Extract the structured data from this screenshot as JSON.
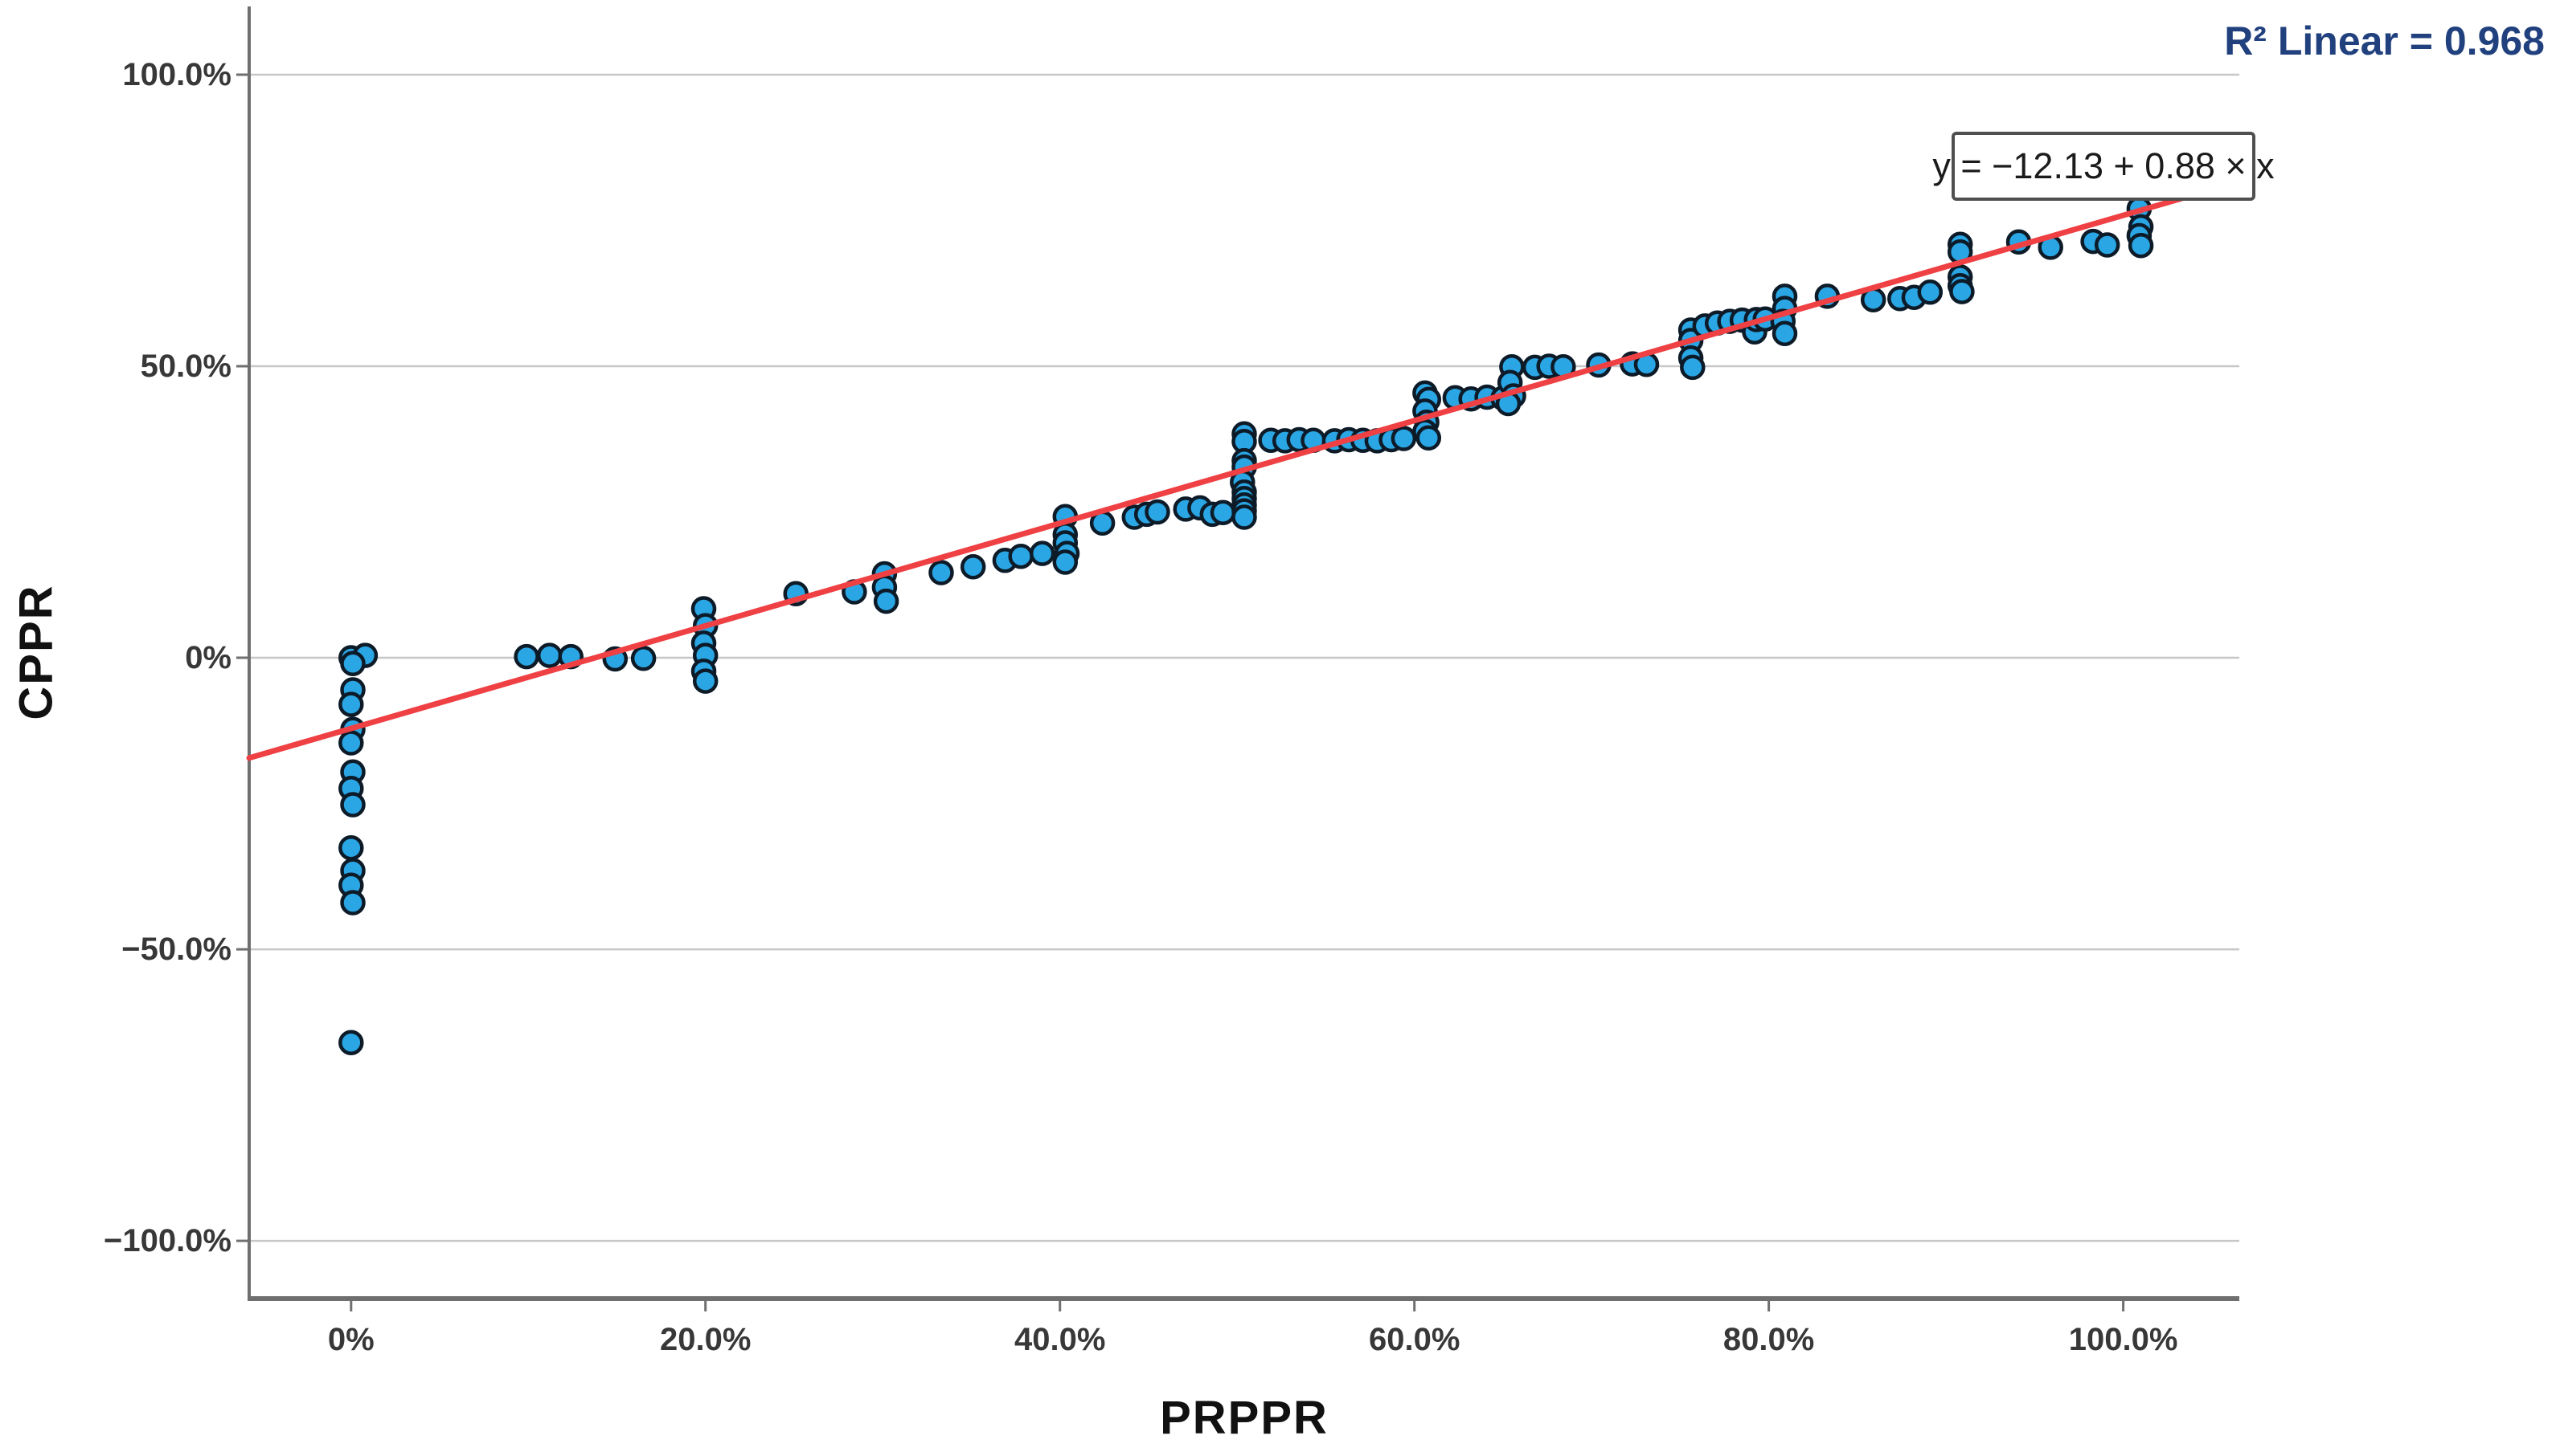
{
  "chart_data": {
    "type": "scatter",
    "title": "",
    "xlabel": "PRPPR",
    "ylabel": "CPPR",
    "r2_label": "R² Linear = 0.968",
    "r2_value": 0.968,
    "fit_line": {
      "equation_label": "y = −12.13 + 0.88 × x",
      "intercept": -12.13,
      "slope": 0.88
    },
    "x_ticks": {
      "labels": [
        "0%",
        "20.0%",
        "40.0%",
        "60.0%",
        "80.0%",
        "100.0%"
      ],
      "values": [
        0,
        20,
        40,
        60,
        80,
        100
      ]
    },
    "y_ticks": {
      "labels": [
        "100.0%",
        "50.0%",
        "0%",
        "−50.0%",
        "−100.0%"
      ],
      "values": [
        100,
        50,
        0,
        -50,
        -100
      ]
    },
    "xlim": [
      -5.75,
      106.55
    ],
    "ylim": [
      -109.9,
      111.7
    ],
    "grid": "horizontal-only",
    "legend": "none",
    "points": [
      [
        0,
        0
      ],
      [
        0.8,
        0.4
      ],
      [
        0.1,
        -1
      ],
      [
        0.1,
        -5.5
      ],
      [
        0,
        -8
      ],
      [
        0.1,
        -12.3
      ],
      [
        0,
        -14.6
      ],
      [
        0.1,
        -19.6
      ],
      [
        0,
        -22.4
      ],
      [
        0.1,
        -25.2
      ],
      [
        0,
        -32.6
      ],
      [
        0.1,
        -36.5
      ],
      [
        0,
        -39
      ],
      [
        0.1,
        -42
      ],
      [
        0,
        -66
      ],
      [
        9.9,
        0.2
      ],
      [
        11.2,
        0.4
      ],
      [
        12.4,
        0.2
      ],
      [
        14.9,
        -0.2
      ],
      [
        16.5,
        -0.1
      ],
      [
        19.9,
        8.4
      ],
      [
        20,
        5.5
      ],
      [
        19.9,
        2.5
      ],
      [
        20,
        0.4
      ],
      [
        19.9,
        -2.3
      ],
      [
        20,
        -4
      ],
      [
        25.1,
        11
      ],
      [
        28.4,
        11.3
      ],
      [
        30.1,
        14.4
      ],
      [
        30.1,
        12.1
      ],
      [
        30.2,
        9.7
      ],
      [
        33.3,
        14.6
      ],
      [
        35.1,
        15.6
      ],
      [
        36.9,
        16.7
      ],
      [
        37.8,
        17.4
      ],
      [
        39,
        17.9
      ],
      [
        40.3,
        24.2
      ],
      [
        40.3,
        21.1
      ],
      [
        40.3,
        19.7
      ],
      [
        40.4,
        17.9
      ],
      [
        40.3,
        16.4
      ],
      [
        42.4,
        23.1
      ],
      [
        44.2,
        24.1
      ],
      [
        44.9,
        24.6
      ],
      [
        45.5,
        25
      ],
      [
        47.1,
        25.5
      ],
      [
        47.9,
        25.7
      ],
      [
        48.6,
        24.6
      ],
      [
        49.2,
        24.9
      ],
      [
        50.4,
        38.4
      ],
      [
        50.4,
        37.1
      ],
      [
        50.4,
        33.8
      ],
      [
        50.4,
        32.7
      ],
      [
        50.3,
        30.1
      ],
      [
        50.4,
        28.4
      ],
      [
        50.4,
        27.3
      ],
      [
        50.4,
        26.2
      ],
      [
        50.4,
        25.2
      ],
      [
        50.4,
        24.1
      ],
      [
        51.9,
        37.3
      ],
      [
        52.7,
        37.2
      ],
      [
        53.5,
        37.4
      ],
      [
        54.3,
        37.3
      ],
      [
        55.5,
        37.2
      ],
      [
        56.3,
        37.4
      ],
      [
        57.1,
        37.3
      ],
      [
        57.9,
        37.2
      ],
      [
        58.7,
        37.4
      ],
      [
        59.4,
        37.6
      ],
      [
        60.6,
        45.4
      ],
      [
        60.8,
        44.3
      ],
      [
        60.6,
        42.3
      ],
      [
        60.7,
        40.4
      ],
      [
        60.6,
        38.8
      ],
      [
        60.8,
        37.7
      ],
      [
        62.3,
        44.6
      ],
      [
        63.2,
        44.4
      ],
      [
        64.1,
        44.7
      ],
      [
        65,
        44.5
      ],
      [
        65.5,
        49.9
      ],
      [
        65.4,
        47.2
      ],
      [
        65.6,
        44.9
      ],
      [
        65.3,
        43.6
      ],
      [
        66.8,
        49.8
      ],
      [
        67.6,
        50
      ],
      [
        68.4,
        49.9
      ],
      [
        70.4,
        50.2
      ],
      [
        72.3,
        50.4
      ],
      [
        73.1,
        50.3
      ],
      [
        75.6,
        56.2
      ],
      [
        75.6,
        54.4
      ],
      [
        75.6,
        51.4
      ],
      [
        75.7,
        49.8
      ],
      [
        76.4,
        56.9
      ],
      [
        77.1,
        57.4
      ],
      [
        77.8,
        57.7
      ],
      [
        78.5,
        57.9
      ],
      [
        79.2,
        55.9
      ],
      [
        79.3,
        58
      ],
      [
        79.8,
        58.1
      ],
      [
        80.9,
        62
      ],
      [
        80.9,
        59.9
      ],
      [
        80.8,
        57.7
      ],
      [
        80.9,
        55.6
      ],
      [
        83.3,
        62
      ],
      [
        85.9,
        61.4
      ],
      [
        87.4,
        61.6
      ],
      [
        88.2,
        61.8
      ],
      [
        89.1,
        62.7
      ],
      [
        90.8,
        70.9
      ],
      [
        90.8,
        69.6
      ],
      [
        90.8,
        65.3
      ],
      [
        90.8,
        63.8
      ],
      [
        90.9,
        62.8
      ],
      [
        94.1,
        71.3
      ],
      [
        95.9,
        70.4
      ],
      [
        98.3,
        71.4
      ],
      [
        99.1,
        70.8
      ],
      [
        100.9,
        77
      ],
      [
        101,
        73.9
      ],
      [
        100.9,
        72.4
      ],
      [
        101,
        70.7
      ]
    ]
  },
  "colors": {
    "point_fill": "#2AA6E4",
    "point_stroke": "#0D1B28",
    "fit_line": "#EF4044",
    "gridline": "#c7c7c7",
    "axis": "#6f6f6f",
    "tick_text": "#383838",
    "r2_text": "#20407e",
    "equation_border": "#4f4f4f",
    "background": "#ffffff"
  }
}
